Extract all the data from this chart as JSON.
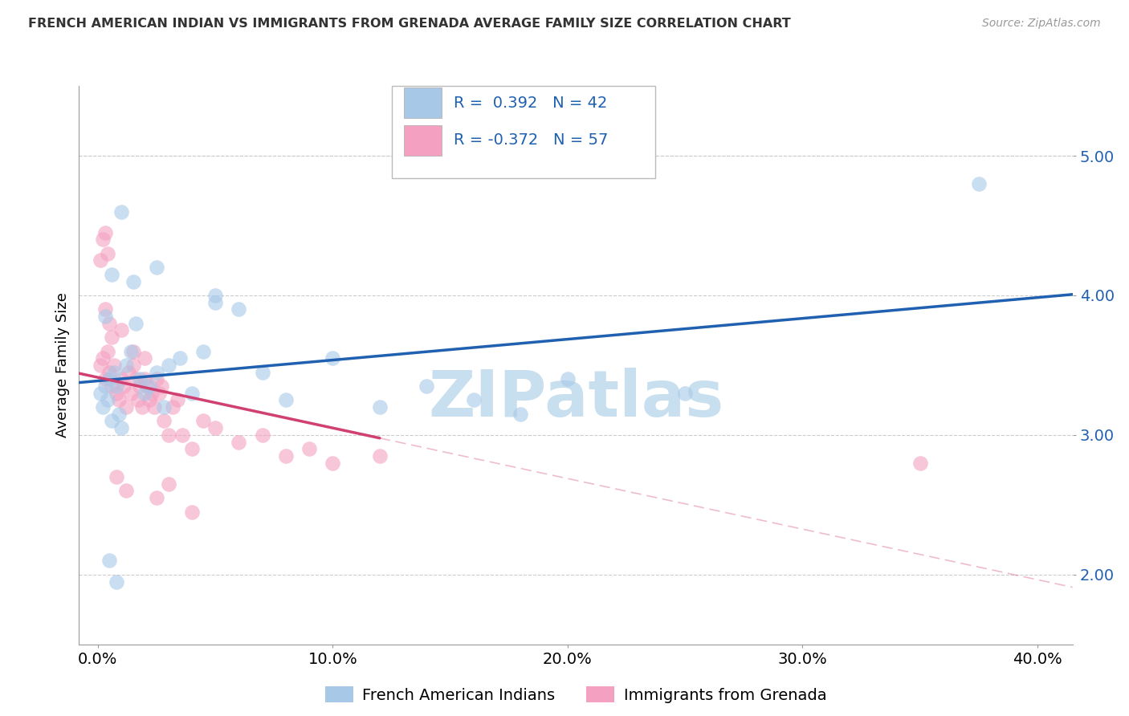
{
  "title": "FRENCH AMERICAN INDIAN VS IMMIGRANTS FROM GRENADA AVERAGE FAMILY SIZE CORRELATION CHART",
  "source": "Source: ZipAtlas.com",
  "ylabel": "Average Family Size",
  "xlabel_ticks": [
    "0.0%",
    "10.0%",
    "20.0%",
    "30.0%",
    "40.0%"
  ],
  "xlabel_tick_vals": [
    0.0,
    0.1,
    0.2,
    0.3,
    0.4
  ],
  "ylim": [
    1.5,
    5.5
  ],
  "xlim": [
    -0.008,
    0.415
  ],
  "yticks": [
    2.0,
    3.0,
    4.0,
    5.0
  ],
  "legend_R1": "R =  0.392",
  "legend_N1": "N = 42",
  "legend_R2": "R = -0.372",
  "legend_N2": "N = 57",
  "legend_labels": [
    "French American Indians",
    "Immigrants from Grenada"
  ],
  "blue_color": "#a8c8e8",
  "pink_color": "#f4a0c0",
  "blue_line_color": "#2060b0",
  "pink_line_color": "#d04070",
  "text_color": "#2060b0",
  "watermark_color": "#c8dff0",
  "watermark": "ZIPatlas",
  "blue_scatter_x": [
    0.001,
    0.002,
    0.003,
    0.004,
    0.005,
    0.006,
    0.007,
    0.008,
    0.009,
    0.01,
    0.012,
    0.014,
    0.016,
    0.018,
    0.02,
    0.022,
    0.025,
    0.028,
    0.03,
    0.035,
    0.04,
    0.045,
    0.05,
    0.06,
    0.07,
    0.08,
    0.1,
    0.12,
    0.14,
    0.16,
    0.2,
    0.25,
    0.01,
    0.015,
    0.025,
    0.05,
    0.375,
    0.005,
    0.008,
    0.003,
    0.006,
    0.18
  ],
  "blue_scatter_y": [
    3.3,
    3.2,
    3.35,
    3.25,
    3.4,
    3.1,
    3.45,
    3.35,
    3.15,
    3.05,
    3.5,
    3.6,
    3.8,
    3.4,
    3.3,
    3.35,
    3.45,
    3.2,
    3.5,
    3.55,
    3.3,
    3.6,
    3.95,
    3.9,
    3.45,
    3.25,
    3.55,
    3.2,
    3.35,
    3.25,
    3.4,
    3.3,
    4.6,
    4.1,
    4.2,
    4.0,
    4.8,
    2.1,
    1.95,
    3.85,
    4.15,
    3.15
  ],
  "pink_scatter_x": [
    0.001,
    0.002,
    0.003,
    0.004,
    0.005,
    0.006,
    0.007,
    0.008,
    0.009,
    0.01,
    0.011,
    0.012,
    0.013,
    0.014,
    0.015,
    0.016,
    0.017,
    0.018,
    0.019,
    0.02,
    0.021,
    0.022,
    0.023,
    0.024,
    0.025,
    0.026,
    0.027,
    0.028,
    0.03,
    0.032,
    0.034,
    0.036,
    0.04,
    0.045,
    0.05,
    0.06,
    0.07,
    0.08,
    0.09,
    0.1,
    0.12,
    0.001,
    0.002,
    0.003,
    0.004,
    0.003,
    0.005,
    0.006,
    0.01,
    0.015,
    0.02,
    0.008,
    0.012,
    0.35,
    0.025,
    0.03,
    0.04
  ],
  "pink_scatter_y": [
    3.5,
    3.55,
    3.4,
    3.6,
    3.45,
    3.35,
    3.5,
    3.3,
    3.25,
    3.4,
    3.35,
    3.2,
    3.45,
    3.3,
    3.5,
    3.4,
    3.25,
    3.35,
    3.2,
    3.4,
    3.35,
    3.25,
    3.3,
    3.2,
    3.4,
    3.3,
    3.35,
    3.1,
    3.0,
    3.2,
    3.25,
    3.0,
    2.9,
    3.1,
    3.05,
    2.95,
    3.0,
    2.85,
    2.9,
    2.8,
    2.85,
    4.25,
    4.4,
    4.45,
    4.3,
    3.9,
    3.8,
    3.7,
    3.75,
    3.6,
    3.55,
    2.7,
    2.6,
    2.8,
    2.55,
    2.65,
    2.45
  ]
}
